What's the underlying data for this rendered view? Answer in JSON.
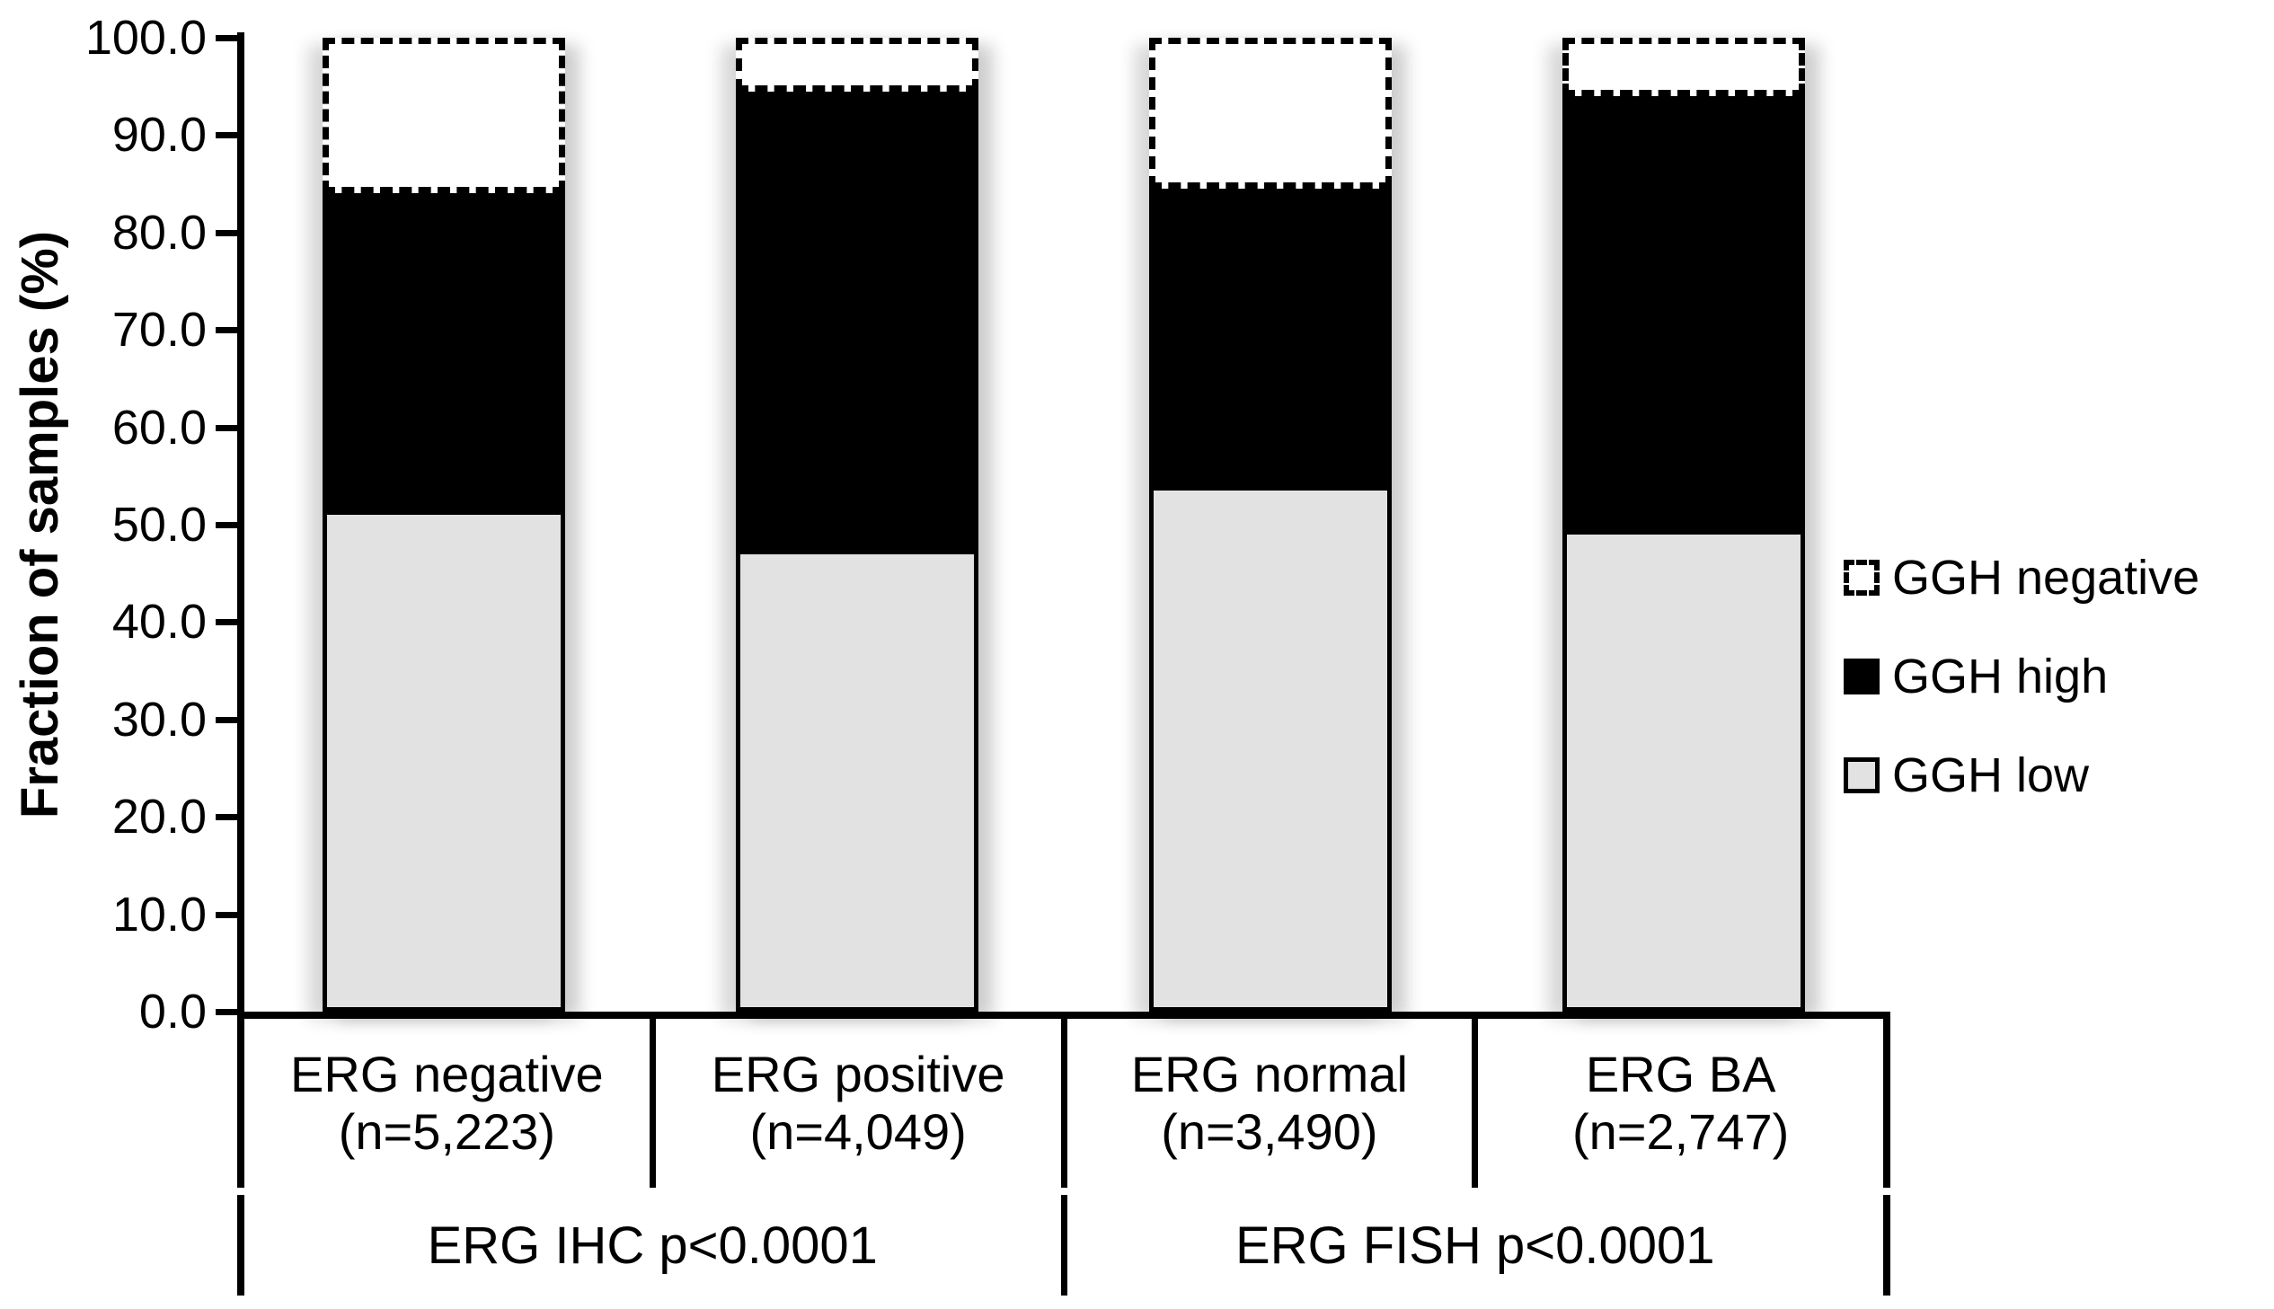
{
  "chart_data": {
    "type": "bar",
    "stacked": true,
    "ylabel": "Fraction of samples (%)",
    "ylim": [
      0,
      100
    ],
    "grid": false,
    "legend_position": "right",
    "yticks": [
      "100.0",
      "90.0",
      "80.0",
      "70.0",
      "60.0",
      "50.0",
      "40.0",
      "30.0",
      "20.0",
      "10.0",
      "0.0"
    ],
    "categories": [
      {
        "name": "ERG negative",
        "n": "(n=5,223)"
      },
      {
        "name": "ERG positive",
        "n": "(n=4,049)"
      },
      {
        "name": "ERG normal",
        "n": "(n=3,490)"
      },
      {
        "name": "ERG BA",
        "n": "(n=2,747)"
      }
    ],
    "groups": [
      {
        "label": "ERG IHC p<0.0001",
        "span": 2
      },
      {
        "label": "ERG FISH p<0.0001",
        "span": 2
      }
    ],
    "series": [
      {
        "name": "GGH low",
        "style": "light-gray",
        "values": [
          51.0,
          47.0,
          53.5,
          49.0
        ]
      },
      {
        "name": "GGH high",
        "style": "black",
        "values": [
          33.0,
          47.5,
          31.0,
          45.0
        ]
      },
      {
        "name": "GGH negative",
        "style": "white-dashed",
        "values": [
          16.0,
          5.5,
          15.5,
          6.0
        ]
      }
    ],
    "legend": [
      {
        "label": "GGH negative",
        "swatch": "white-dashed"
      },
      {
        "label": "GGH high",
        "swatch": "black"
      },
      {
        "label": "GGH low",
        "swatch": "light-gray"
      }
    ],
    "colors": {
      "black": "#000000",
      "light_gray": "#E2E2E2",
      "white": "#FFFFFF"
    }
  }
}
